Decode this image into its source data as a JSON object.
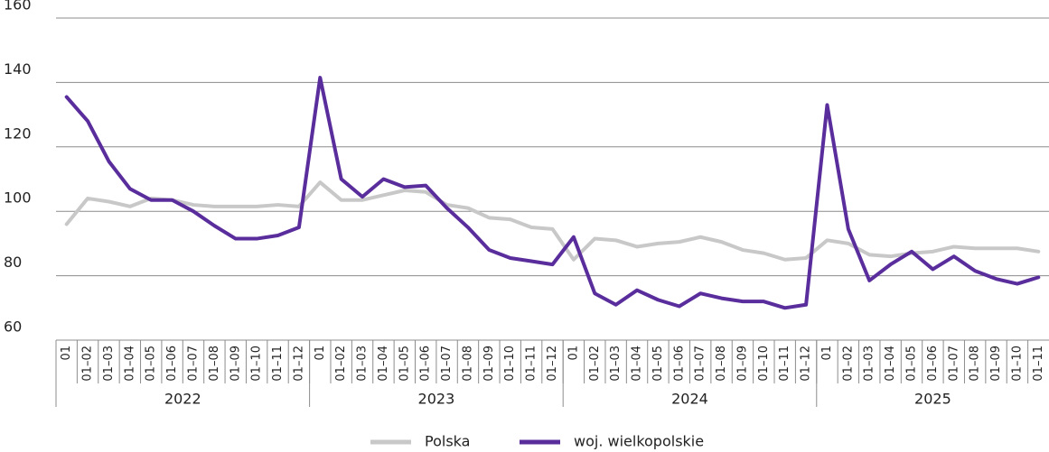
{
  "chart_data": {
    "type": "line",
    "categories": [
      "01",
      "01–02",
      "01–03",
      "01–04",
      "01–05",
      "01–06",
      "01–07",
      "01–08",
      "01–09",
      "01–10",
      "01–11",
      "01–12",
      "01",
      "01–02",
      "01–03",
      "01–04",
      "01–05",
      "01–06",
      "01–07",
      "01–08",
      "01–09",
      "01–10",
      "01–11",
      "01–12",
      "01",
      "01–02",
      "01–03",
      "01–04",
      "01–05",
      "01–06",
      "01–07",
      "01–08",
      "01–09",
      "01–10",
      "01–11",
      "01–12",
      "01",
      "01–02",
      "01–03",
      "01–04",
      "01–05",
      "01–06",
      "01–07",
      "01–08",
      "01–09",
      "01–10",
      "01–11"
    ],
    "x_groups": [
      "2022",
      "2023",
      "2024",
      "2025"
    ],
    "series": [
      {
        "name": "Polska",
        "color": "#c8c8c8",
        "values": [
          96,
          104,
          103,
          101.5,
          104,
          103.5,
          102,
          101.5,
          101.5,
          101.5,
          102,
          101.5,
          109,
          103.5,
          103.5,
          105,
          106.5,
          106,
          102,
          101,
          98,
          97.5,
          95,
          94.5,
          85,
          91.5,
          91,
          89,
          90,
          90.5,
          92,
          90.5,
          88,
          87,
          85,
          85.5,
          91,
          90,
          86.5,
          86,
          87,
          87.5,
          89,
          88.5,
          88.5,
          88.5,
          87.5
        ]
      },
      {
        "name": "woj. wielkopolskie",
        "color": "#5a2d9c",
        "values": [
          135.5,
          128,
          115.5,
          107,
          103.5,
          103.5,
          100,
          95.5,
          91.5,
          91.5,
          92.5,
          95,
          141.5,
          110,
          104.5,
          110,
          107.5,
          108,
          101,
          95,
          88,
          85.5,
          84.5,
          83.5,
          92,
          74.5,
          71,
          75.5,
          72.5,
          70.5,
          74.5,
          73,
          72,
          72,
          70,
          71,
          133,
          94.5,
          78.5,
          83.5,
          87.5,
          82,
          86,
          81.5,
          79,
          77.5,
          79.5
        ]
      }
    ],
    "ylim": [
      60,
      160
    ],
    "yticks": [
      60,
      80,
      100,
      120,
      140,
      160
    ],
    "grid": true,
    "legend": "bottom"
  }
}
